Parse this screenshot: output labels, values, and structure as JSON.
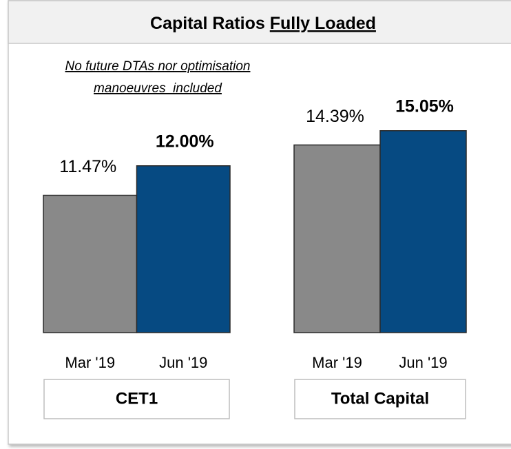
{
  "header": {
    "title": "Capital Ratios",
    "title_emphasis": "Fully Loaded"
  },
  "note": [
    "No future DTAs nor optimisation",
    "manoeuvres  included"
  ],
  "chart_data": [
    {
      "type": "bar",
      "title": "CET1",
      "categories": [
        "Mar '19",
        "Jun '19"
      ],
      "values": [
        11.47,
        12.0
      ],
      "value_labels": [
        "11.47%",
        "12.00%"
      ],
      "colors": [
        "#898989",
        "#064a82"
      ],
      "ylim": [
        9,
        13
      ]
    },
    {
      "type": "bar",
      "title": "Total Capital",
      "categories": [
        "Mar '19",
        "Jun '19"
      ],
      "values": [
        14.39,
        15.05
      ],
      "value_labels": [
        "14.39%",
        "15.05%"
      ],
      "colors": [
        "#898989",
        "#064a82"
      ],
      "ylim": [
        5.7,
        16
      ]
    }
  ]
}
